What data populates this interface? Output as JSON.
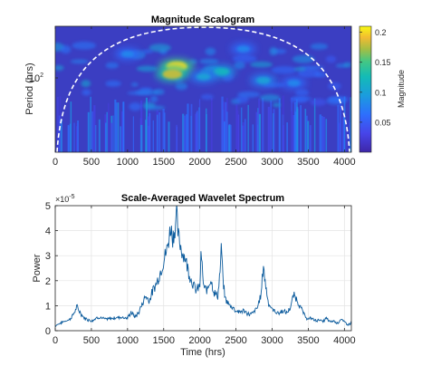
{
  "chart_data": [
    {
      "type": "heatmap",
      "title": "Magnitude Scalogram",
      "xlabel": "",
      "ylabel": "Period (hrs)",
      "xlim": [
        0,
        4096
      ],
      "xticks": [
        0,
        500,
        1000,
        1500,
        2000,
        2500,
        3000,
        3500,
        4000
      ],
      "ytick_label_prefix": "10",
      "ytick_label_exp": "2",
      "yscale": "log",
      "colormap": "parula",
      "colorbar": {
        "label": "Magnitude",
        "ticks": [
          0.05,
          0.1,
          0.15,
          0.2
        ],
        "tick_labels": [
          "0.05",
          "0.1",
          "0.15",
          "0.2"
        ],
        "range": [
          0,
          0.21
        ]
      },
      "cone_of_influence": "white dashed line",
      "hotspots": [
        {
          "time": 1680,
          "period_level": 0.32,
          "magnitude": 0.2
        },
        {
          "time": 1620,
          "period_level": 0.38,
          "magnitude": 0.18
        },
        {
          "time": 2300,
          "period_level": 0.36,
          "magnitude": 0.12
        },
        {
          "time": 2050,
          "period_level": 0.4,
          "magnitude": 0.1
        },
        {
          "time": 2880,
          "period_level": 0.43,
          "magnitude": 0.1
        },
        {
          "time": 3300,
          "period_level": 0.45,
          "magnitude": 0.08
        },
        {
          "time": 1000,
          "period_level": 0.22,
          "magnitude": 0.08
        },
        {
          "time": 2600,
          "period_level": 0.18,
          "magnitude": 0.08
        }
      ]
    },
    {
      "type": "line",
      "title": "Scale-Averaged Wavelet Spectrum",
      "xlabel": "Time (hrs)",
      "ylabel": "Power",
      "y_exponent_label": "×10",
      "y_exponent": "-5",
      "xlim": [
        0,
        4096
      ],
      "ylim": [
        0,
        5
      ],
      "xticks": [
        0,
        500,
        1000,
        1500,
        2000,
        2500,
        3000,
        3500,
        4000
      ],
      "yticks": [
        0,
        1,
        2,
        3,
        4,
        5
      ],
      "grid": true,
      "color": "#0a5a9c",
      "x": [
        0,
        100,
        200,
        250,
        300,
        350,
        400,
        500,
        600,
        700,
        800,
        900,
        1000,
        1050,
        1100,
        1150,
        1200,
        1250,
        1300,
        1350,
        1400,
        1450,
        1500,
        1550,
        1600,
        1620,
        1650,
        1680,
        1700,
        1750,
        1800,
        1850,
        1900,
        1950,
        2000,
        2020,
        2040,
        2060,
        2100,
        2150,
        2200,
        2250,
        2280,
        2300,
        2320,
        2350,
        2400,
        2450,
        2500,
        2550,
        2600,
        2650,
        2700,
        2750,
        2800,
        2850,
        2880,
        2900,
        2950,
        3000,
        3050,
        3100,
        3150,
        3200,
        3250,
        3300,
        3350,
        3400,
        3450,
        3500,
        3550,
        3600,
        3650,
        3700,
        3750,
        3800,
        3850,
        3900,
        3950,
        4000,
        4050,
        4096
      ],
      "y": [
        0.2,
        0.35,
        0.45,
        0.65,
        0.95,
        0.7,
        0.5,
        0.4,
        0.55,
        0.45,
        0.5,
        0.55,
        0.5,
        0.75,
        0.55,
        0.7,
        1.05,
        1.4,
        1.2,
        1.6,
        1.9,
        2.3,
        2.8,
        3.3,
        4.2,
        3.7,
        4.0,
        4.6,
        3.8,
        3.2,
        2.9,
        2.3,
        1.9,
        1.6,
        1.8,
        3.2,
        2.1,
        1.7,
        1.6,
        2.1,
        1.5,
        1.4,
        2.4,
        3.4,
        2.0,
        1.3,
        1.05,
        0.95,
        0.8,
        0.75,
        0.8,
        0.7,
        0.65,
        0.75,
        0.95,
        1.5,
        2.7,
        2.0,
        1.1,
        0.85,
        0.75,
        0.7,
        0.8,
        0.7,
        0.9,
        1.45,
        1.2,
        0.9,
        0.6,
        0.45,
        0.5,
        0.4,
        0.45,
        0.35,
        0.5,
        0.35,
        0.4,
        0.3,
        0.45,
        0.35,
        0.25,
        0.3
      ]
    }
  ]
}
